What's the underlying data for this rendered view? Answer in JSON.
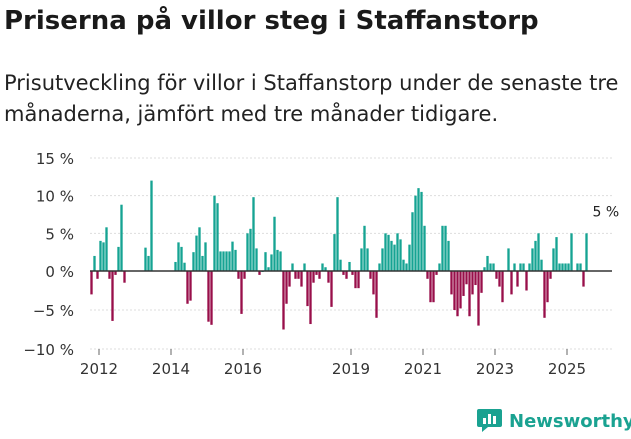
{
  "title": "Priserna på villor steg i Staffanstorp",
  "subtitle": "Prisutveckling för villor i Staffanstorp under de senaste tre månaderna, jämfört med tre månader tidigare.",
  "brand": {
    "name": "Newsworthy",
    "icon": "newsworthy-chart-icon"
  },
  "colors": {
    "positive": "#16a393",
    "negative": "#990f4a",
    "zero_line": "#333333",
    "grid": "#dddddd",
    "brand": "#1aa291"
  },
  "chart_data": {
    "type": "bar",
    "title": "Priserna på villor steg i Staffanstorp",
    "xlabel": "",
    "ylabel": "",
    "ylim": [
      -10,
      15
    ],
    "yticks": [
      15,
      10,
      5,
      0,
      -5,
      -10
    ],
    "ytick_labels": [
      "15 %",
      "10 %",
      "5 %",
      "0 %",
      "−5 %",
      "−10 %"
    ],
    "x_start": 2011.75,
    "x_end": 2026.25,
    "xticks": [
      2012,
      2014,
      2016,
      2019,
      2021,
      2023,
      2025
    ],
    "xtick_labels": [
      "2012",
      "2014",
      "2016",
      "2019",
      "2021",
      "2023",
      "2025"
    ],
    "step": 0.0833333,
    "values": [
      -3,
      2,
      -1,
      4,
      3.8,
      5.8,
      -1,
      -6.4,
      -0.5,
      3.2,
      8.8,
      -1.5,
      null,
      null,
      null,
      null,
      null,
      null,
      3.1,
      2,
      12,
      null,
      null,
      null,
      null,
      null,
      null,
      null,
      1.2,
      3.8,
      3.2,
      1.1,
      -4.2,
      -3.8,
      2.5,
      4.7,
      5.8,
      2,
      3.8,
      -6.5,
      -6.9,
      10,
      9,
      2.6,
      2.6,
      2.6,
      2.6,
      3.9,
      2.8,
      -1,
      -5.5,
      -1,
      5,
      5.6,
      9.8,
      3,
      -0.5,
      0,
      2.5,
      0.5,
      2.2,
      7.2,
      2.8,
      2.6,
      -7.5,
      -4.2,
      -2,
      1,
      -1,
      -1,
      -2,
      1,
      -4.5,
      -6.8,
      -1.5,
      -0.5,
      -1,
      1,
      0.5,
      -1.5,
      -4.6,
      4.9,
      9.8,
      1.5,
      -0.5,
      -1,
      1.2,
      -0.5,
      -2.2,
      -2.2,
      3,
      6,
      3,
      -1,
      -3,
      -6,
      1,
      3,
      5,
      4.8,
      4,
      3.5,
      5,
      4.2,
      1.5,
      1,
      3.5,
      7.8,
      10,
      11,
      10.5,
      6,
      -1,
      -4,
      -4,
      -0.5,
      1,
      6,
      6,
      4,
      -3,
      -5,
      -5.8,
      -4.8,
      -3.2,
      -1.7,
      -5.8,
      -3,
      -1.8,
      -7,
      -2.8,
      0.5,
      2,
      1,
      1,
      -1,
      -2,
      -4,
      null,
      3,
      -3,
      1,
      -2,
      1,
      1,
      -2.5,
      1,
      3,
      4,
      5,
      1.5,
      -6,
      -4,
      -1,
      3,
      4.5,
      1,
      1,
      1,
      1,
      5,
      null,
      1,
      1,
      -2,
      5,
      null,
      null
    ],
    "annotation": {
      "label": "5 %",
      "x": 2026.08,
      "y": 5
    }
  }
}
